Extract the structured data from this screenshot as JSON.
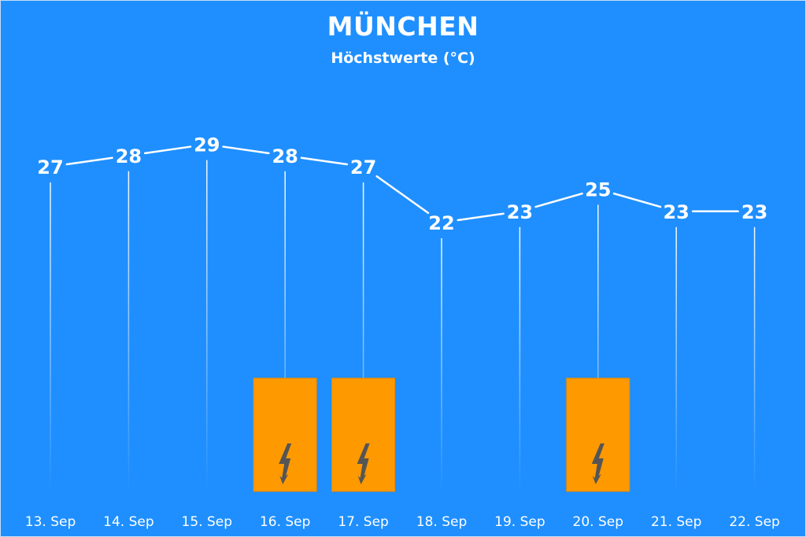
{
  "title": "MÜNCHEN",
  "subtitle": "Höchstwerte (°C)",
  "colors": {
    "background": "#1f8fff",
    "line": "#ffffff",
    "storm_box": "#ff9900",
    "storm_icon": "#555555"
  },
  "chart_data": {
    "type": "line",
    "title": "MÜNCHEN",
    "subtitle": "Höchstwerte (°C)",
    "categories": [
      "13. Sep",
      "14. Sep",
      "15. Sep",
      "16. Sep",
      "17. Sep",
      "18. Sep",
      "19. Sep",
      "20. Sep",
      "21. Sep",
      "22. Sep"
    ],
    "values": [
      27,
      28,
      29,
      28,
      27,
      22,
      23,
      25,
      23,
      23
    ],
    "value_labels": [
      "27",
      "28",
      "29",
      "28",
      "27",
      "22",
      "23",
      "25",
      "23",
      "23"
    ],
    "thunderstorm": [
      false,
      false,
      false,
      true,
      true,
      false,
      false,
      true,
      false,
      false
    ],
    "thunderstorm_icon": "lightning-icon",
    "grid": false
  }
}
